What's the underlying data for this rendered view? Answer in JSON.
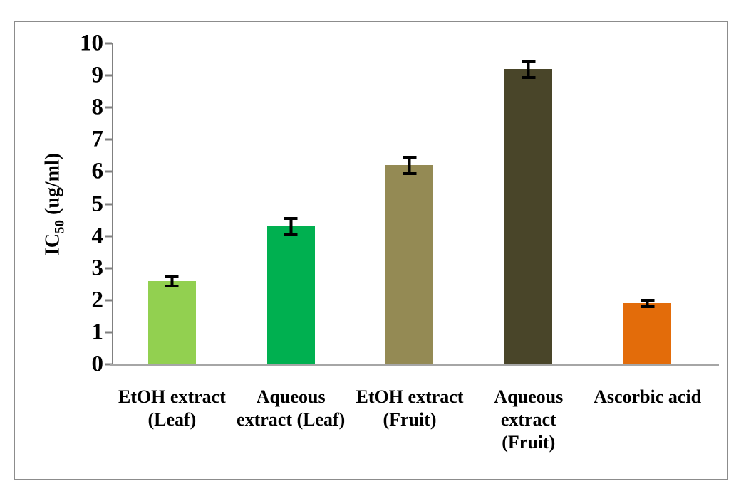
{
  "chart_data": {
    "type": "bar",
    "title": "",
    "ylabel": "IC50 (ug/ml)",
    "ylabel_prefix": "IC",
    "ylabel_subscript": "50",
    "ylabel_suffix": " (ug/ml)",
    "xlabel": "",
    "ylim": [
      0,
      10
    ],
    "yticks": [
      0,
      1,
      2,
      3,
      4,
      5,
      6,
      7,
      8,
      9,
      10
    ],
    "grid": false,
    "legend": "none",
    "categories": [
      {
        "label": "EtOH extract (Leaf)",
        "lines": [
          "EtOH extract",
          "(Leaf)"
        ]
      },
      {
        "label": "Aqueous extract (Leaf)",
        "lines": [
          "Aqueous",
          "extract (Leaf)"
        ]
      },
      {
        "label": "EtOH extract (Fruit)",
        "lines": [
          "EtOH extract",
          "(Fruit)"
        ]
      },
      {
        "label": "Aqueous extract (Fruit)",
        "lines": [
          "Aqueous",
          "extract",
          "(Fruit)"
        ]
      },
      {
        "label": "Ascorbic acid",
        "lines": [
          "Ascorbic acid"
        ]
      }
    ],
    "values": [
      2.6,
      4.3,
      6.2,
      9.2,
      1.9
    ],
    "errors": [
      0.2,
      0.3,
      0.3,
      0.3,
      0.15
    ],
    "bar_colors": [
      "#92D050",
      "#00B050",
      "#948A54",
      "#494529",
      "#E36C0A"
    ]
  },
  "colors": {
    "frame_border": "#8C8C8C",
    "y_axis_line": "#808080",
    "x_axis_line": "#A6A6A6",
    "error_bar": "#000000",
    "text": "#000000",
    "background": "#FFFFFF"
  }
}
